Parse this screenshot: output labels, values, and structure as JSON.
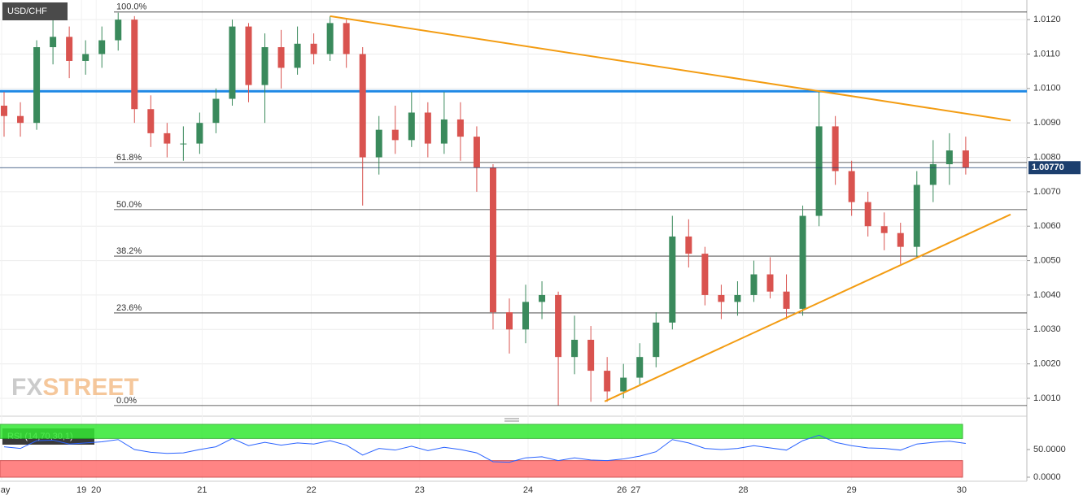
{
  "chart_data": {
    "type": "candlestick",
    "title": "USD/CHF",
    "watermark": [
      "FX",
      "STREET"
    ],
    "xlim": [
      -0.25,
      62.75
    ],
    "xticks": [
      {
        "value": -0.15,
        "label": "May"
      },
      {
        "value": 4.75,
        "label": "19"
      },
      {
        "value": 5.65,
        "label": "20"
      },
      {
        "value": 12.15,
        "label": "21"
      },
      {
        "value": 18.85,
        "label": "22"
      },
      {
        "value": 25.5,
        "label": "23"
      },
      {
        "value": 32.15,
        "label": "24"
      },
      {
        "value": 37.9,
        "label": "26"
      },
      {
        "value": 38.75,
        "label": "27"
      },
      {
        "value": 45.35,
        "label": "28"
      },
      {
        "value": 52,
        "label": "29"
      },
      {
        "value": 58.75,
        "label": "30"
      }
    ],
    "ylim": [
      1.00048,
      1.01257
    ],
    "yticks": [
      {
        "value": 1.001,
        "label": "1.0010"
      },
      {
        "value": 1.002,
        "label": "1.0020"
      },
      {
        "value": 1.003,
        "label": "1.0030"
      },
      {
        "value": 1.004,
        "label": "1.0040"
      },
      {
        "value": 1.005,
        "label": "1.0050"
      },
      {
        "value": 1.006,
        "label": "1.0060"
      },
      {
        "value": 1.007,
        "label": "1.0070"
      },
      {
        "value": 1.008,
        "label": "1.0080"
      },
      {
        "value": 1.009,
        "label": "1.0090"
      },
      {
        "value": 1.01,
        "label": "1.0100"
      },
      {
        "value": 1.011,
        "label": "1.0110"
      },
      {
        "value": 1.012,
        "label": "1.0120"
      }
    ],
    "grid": true,
    "up_color": "#3a8a5c",
    "down_color": "#d9534f",
    "candles": [
      [
        1.0095,
        1.0099,
        1.0086,
        1.0092
      ],
      [
        1.0092,
        1.0096,
        1.0086,
        1.009
      ],
      [
        1.009,
        1.0114,
        1.0088,
        1.0112
      ],
      [
        1.0112,
        1.0121,
        1.0107,
        1.0115
      ],
      [
        1.0115,
        1.0118,
        1.0103,
        1.0108
      ],
      [
        1.0108,
        1.0114,
        1.0104,
        1.011
      ],
      [
        1.011,
        1.0118,
        1.0106,
        1.0114
      ],
      [
        1.0114,
        1.0122,
        1.0111,
        1.012
      ],
      [
        1.012,
        1.0121,
        1.009,
        1.0094
      ],
      [
        1.0094,
        1.0098,
        1.0083,
        1.0087
      ],
      [
        1.0087,
        1.009,
        1.008,
        1.0084
      ],
      [
        1.0084,
        1.0089,
        1.0079,
        1.0084
      ],
      [
        1.0084,
        1.0093,
        1.0081,
        1.009
      ],
      [
        1.009,
        1.01,
        1.0087,
        1.0097
      ],
      [
        1.0097,
        1.012,
        1.0095,
        1.0118
      ],
      [
        1.0118,
        1.0119,
        1.0096,
        1.0101
      ],
      [
        1.0101,
        1.0116,
        1.009,
        1.0112
      ],
      [
        1.0112,
        1.0117,
        1.01,
        1.0106
      ],
      [
        1.0106,
        1.0118,
        1.0104,
        1.0113
      ],
      [
        1.0113,
        1.0116,
        1.0107,
        1.011
      ],
      [
        1.011,
        1.0121,
        1.0108,
        1.0119
      ],
      [
        1.0119,
        1.012,
        1.0106,
        1.011
      ],
      [
        1.011,
        1.0112,
        1.0066,
        1.008
      ],
      [
        1.008,
        1.0092,
        1.0075,
        1.0088
      ],
      [
        1.0088,
        1.0095,
        1.0081,
        1.0085
      ],
      [
        1.0085,
        1.0099,
        1.0083,
        1.0093
      ],
      [
        1.0093,
        1.0096,
        1.008,
        1.0084
      ],
      [
        1.0084,
        1.0099,
        1.0081,
        1.0091
      ],
      [
        1.0091,
        1.0096,
        1.0079,
        1.0086
      ],
      [
        1.0086,
        1.0089,
        1.007,
        1.0077
      ],
      [
        1.0077,
        1.0078,
        1.003,
        1.0035
      ],
      [
        1.0035,
        1.0039,
        1.0023,
        1.003
      ],
      [
        1.003,
        1.0043,
        1.0026,
        1.0038
      ],
      [
        1.0038,
        1.0044,
        1.0033,
        1.004
      ],
      [
        1.004,
        1.0041,
        1.0008,
        1.0022
      ],
      [
        1.0022,
        1.0034,
        1.0017,
        1.0027
      ],
      [
        1.0027,
        1.0031,
        1.0009,
        1.0018
      ],
      [
        1.0018,
        1.0022,
        1.0009,
        1.0012
      ],
      [
        1.0012,
        1.002,
        1.001,
        1.0016
      ],
      [
        1.0016,
        1.0026,
        1.0014,
        1.0022
      ],
      [
        1.0022,
        1.0035,
        1.0019,
        1.0032
      ],
      [
        1.0032,
        1.0063,
        1.003,
        1.0057
      ],
      [
        1.0057,
        1.0062,
        1.0048,
        1.0052
      ],
      [
        1.0052,
        1.0054,
        1.0037,
        1.004
      ],
      [
        1.004,
        1.0043,
        1.0033,
        1.0038
      ],
      [
        1.0038,
        1.0044,
        1.0034,
        1.004
      ],
      [
        1.004,
        1.005,
        1.0038,
        1.0046
      ],
      [
        1.0046,
        1.0051,
        1.0039,
        1.0041
      ],
      [
        1.0041,
        1.0046,
        1.0033,
        1.0036
      ],
      [
        1.0036,
        1.0066,
        1.0034,
        1.0063
      ],
      [
        1.0063,
        1.0099,
        1.006,
        1.0089
      ],
      [
        1.0089,
        1.0092,
        1.0072,
        1.0076
      ],
      [
        1.0076,
        1.0079,
        1.0063,
        1.0067
      ],
      [
        1.0067,
        1.007,
        1.0057,
        1.006
      ],
      [
        1.006,
        1.0064,
        1.0053,
        1.0058
      ],
      [
        1.0058,
        1.0061,
        1.0049,
        1.0054
      ],
      [
        1.0054,
        1.0076,
        1.0051,
        1.0072
      ],
      [
        1.0072,
        1.0085,
        1.0067,
        1.0078
      ],
      [
        1.0078,
        1.0087,
        1.0072,
        1.0082
      ],
      [
        1.0082,
        1.0086,
        1.0075,
        1.0077
      ]
    ],
    "fib_levels": [
      {
        "label": "100.0%",
        "value": 1.01222
      },
      {
        "label": "61.8%",
        "value": 1.00785
      },
      {
        "label": "50.0%",
        "value": 1.00648
      },
      {
        "label": "38.2%",
        "value": 1.00513
      },
      {
        "label": "23.6%",
        "value": 1.00348
      },
      {
        "label": "0.0%",
        "value": 1.00079
      }
    ],
    "fib_color": "#333333",
    "resistance": {
      "value": 1.00992,
      "color": "#1e88e5"
    },
    "trendlines": [
      {
        "x": [
          20,
          61.75
        ],
        "y": [
          1.0121,
          1.00907
        ]
      },
      {
        "x": [
          36.85,
          61.75
        ],
        "y": [
          1.00091,
          1.00634
        ]
      }
    ],
    "trendline_color": "#f39c12",
    "last_price": {
      "value": 1.0077,
      "label": "1.00770",
      "color": "#1c3f6e"
    },
    "rsi": {
      "label": "RSI (14,70,30,1)",
      "ylim": [
        0,
        100
      ],
      "yticks": [
        {
          "value": 50,
          "label": "50.0000"
        },
        {
          "value": 0,
          "label": "0.0000"
        }
      ],
      "overbought": 70,
      "oversold": 30,
      "color": "#2962ff",
      "values": [
        55,
        52,
        66,
        67,
        60,
        62,
        64,
        68,
        50,
        45,
        43,
        44,
        50,
        55,
        70,
        57,
        63,
        58,
        62,
        60,
        66,
        58,
        40,
        52,
        49,
        56,
        48,
        54,
        50,
        44,
        28,
        27,
        35,
        37,
        30,
        35,
        31,
        30,
        33,
        38,
        46,
        68,
        62,
        52,
        50,
        52,
        57,
        53,
        49,
        66,
        76,
        63,
        57,
        53,
        52,
        49,
        60,
        63,
        65,
        61
      ]
    }
  }
}
